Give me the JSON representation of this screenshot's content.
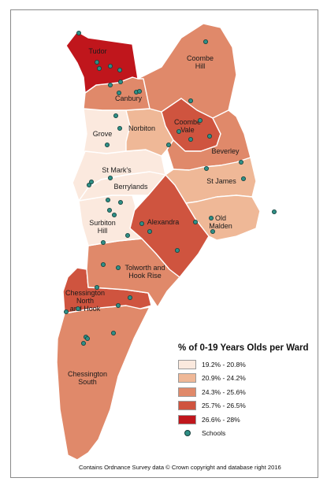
{
  "colors": {
    "class1": "#fbe9de",
    "class2": "#efb897",
    "class3": "#e0896a",
    "class4": "#cf543f",
    "class5": "#c0161c",
    "school": "#2f8f86"
  },
  "wards": [
    {
      "id": "tudor",
      "name": "Tudor",
      "class": 5
    },
    {
      "id": "coombe-hill",
      "name": "Coombe Hill",
      "class": 3
    },
    {
      "id": "canbury",
      "name": "Canbury",
      "class": 3
    },
    {
      "id": "grove",
      "name": "Grove",
      "class": 1
    },
    {
      "id": "norbiton",
      "name": "Norbiton",
      "class": 2
    },
    {
      "id": "coombe-vale",
      "name": "Coombe Vale",
      "class": 4
    },
    {
      "id": "beverley",
      "name": "Beverley",
      "class": 3
    },
    {
      "id": "st-marks",
      "name": "St Mark's",
      "class": 1
    },
    {
      "id": "berrylands",
      "name": "Berrylands",
      "class": 1
    },
    {
      "id": "st-james",
      "name": "St James",
      "class": 2
    },
    {
      "id": "surbiton-hill",
      "name": "Surbiton Hill",
      "class": 1
    },
    {
      "id": "alexandra",
      "name": "Alexandra",
      "class": 4
    },
    {
      "id": "old-malden",
      "name": "Old Malden",
      "class": 2
    },
    {
      "id": "tolworth-hook-rise",
      "name": "Tolworth and Hook Rise",
      "class": 3
    },
    {
      "id": "chessington-north-hook",
      "name": "Chessington North and Hook",
      "class": 4
    },
    {
      "id": "chessington-south",
      "name": "Chessington South",
      "class": 3
    }
  ],
  "labels": {
    "tudor": [
      "Tudor"
    ],
    "coombe_hill": [
      "Coombe",
      "Hill"
    ],
    "canbury": [
      "Canbury"
    ],
    "grove": [
      "Grove"
    ],
    "norbiton": [
      "Norbiton"
    ],
    "coombe_vale": [
      "Coombe",
      "Vale"
    ],
    "beverley": [
      "Beverley"
    ],
    "st_marks": [
      "St Mark's"
    ],
    "berrylands": [
      "Berrylands"
    ],
    "st_james": [
      "St James"
    ],
    "surbiton_hill": [
      "Surbiton",
      "Hill"
    ],
    "alexandra": [
      "Alexandra"
    ],
    "old_malden": [
      "Old",
      "Malden"
    ],
    "tolworth": [
      "Tolworth and",
      "Hook Rise"
    ],
    "chess_north": [
      "Chessington",
      "North",
      "and Hook"
    ],
    "chess_south": [
      "Chessington",
      "South"
    ]
  },
  "legend": {
    "title": "% of 0-19 Years Olds per Ward",
    "classes": [
      {
        "label": "19.2% - 20.8%",
        "color": "#fbe9de"
      },
      {
        "label": "20.9% - 24.2%",
        "color": "#efb897"
      },
      {
        "label": "24.3% - 25.6%",
        "color": "#e0896a"
      },
      {
        "label": "25.7% - 26.5%",
        "color": "#cf543f"
      },
      {
        "label": "26.6% - 28%",
        "color": "#c0161c"
      }
    ],
    "schools_label": "Schools"
  },
  "credit": "Contains Ordnance Survey data © Crown copyright and database right 2016"
}
